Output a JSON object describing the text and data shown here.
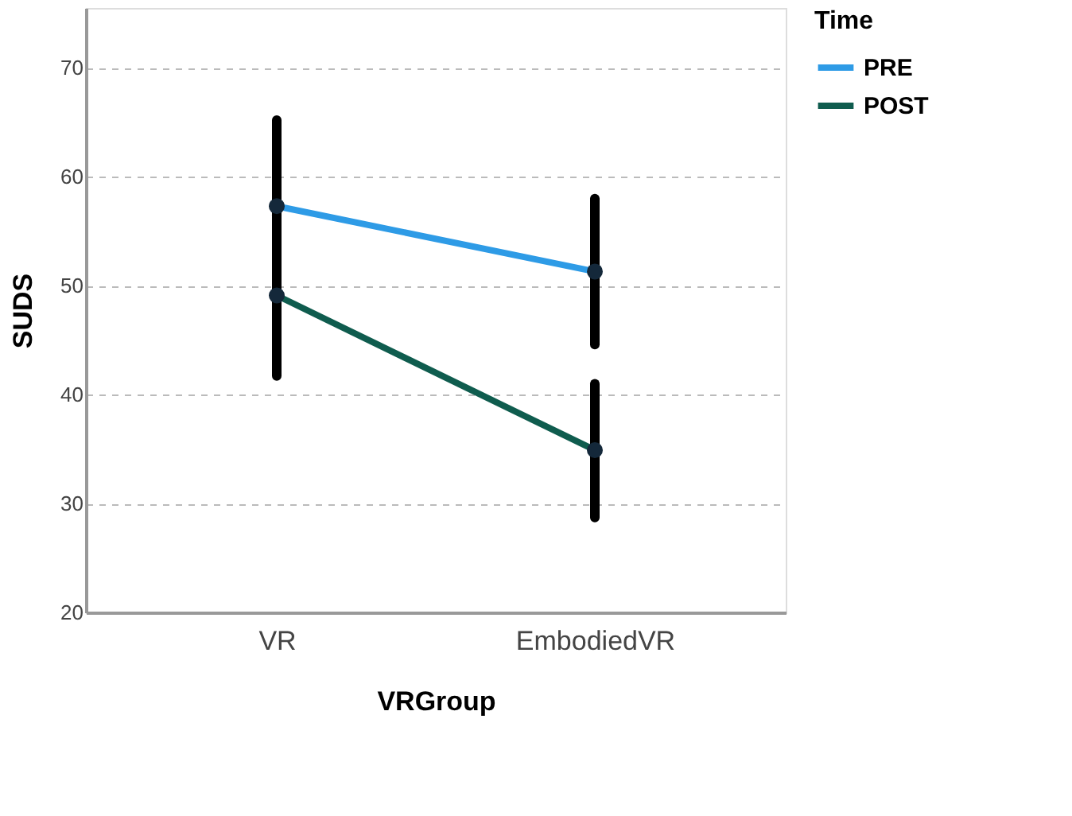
{
  "chart_data": {
    "type": "line",
    "xlabel": "VRGroup",
    "ylabel": "SUDS",
    "legend_title": "Time",
    "categories": [
      "VR",
      "EmbodiedVR"
    ],
    "series": [
      {
        "name": "PRE",
        "color": "#2e9be6",
        "values": [
          57.3,
          51.3
        ],
        "errors": [
          [
            49.5,
            65.2
          ],
          [
            44.6,
            58.0
          ]
        ]
      },
      {
        "name": "POST",
        "color": "#0f5c4e",
        "values": [
          49.1,
          34.9
        ],
        "errors": [
          [
            41.7,
            56.5
          ],
          [
            28.7,
            41.0
          ]
        ]
      }
    ],
    "ylim": [
      20,
      75.5
    ],
    "yticks": [
      20,
      30,
      40,
      50,
      60,
      70
    ],
    "grid": "y",
    "legend": "top right",
    "marker": "circle",
    "line_style": "solid"
  }
}
